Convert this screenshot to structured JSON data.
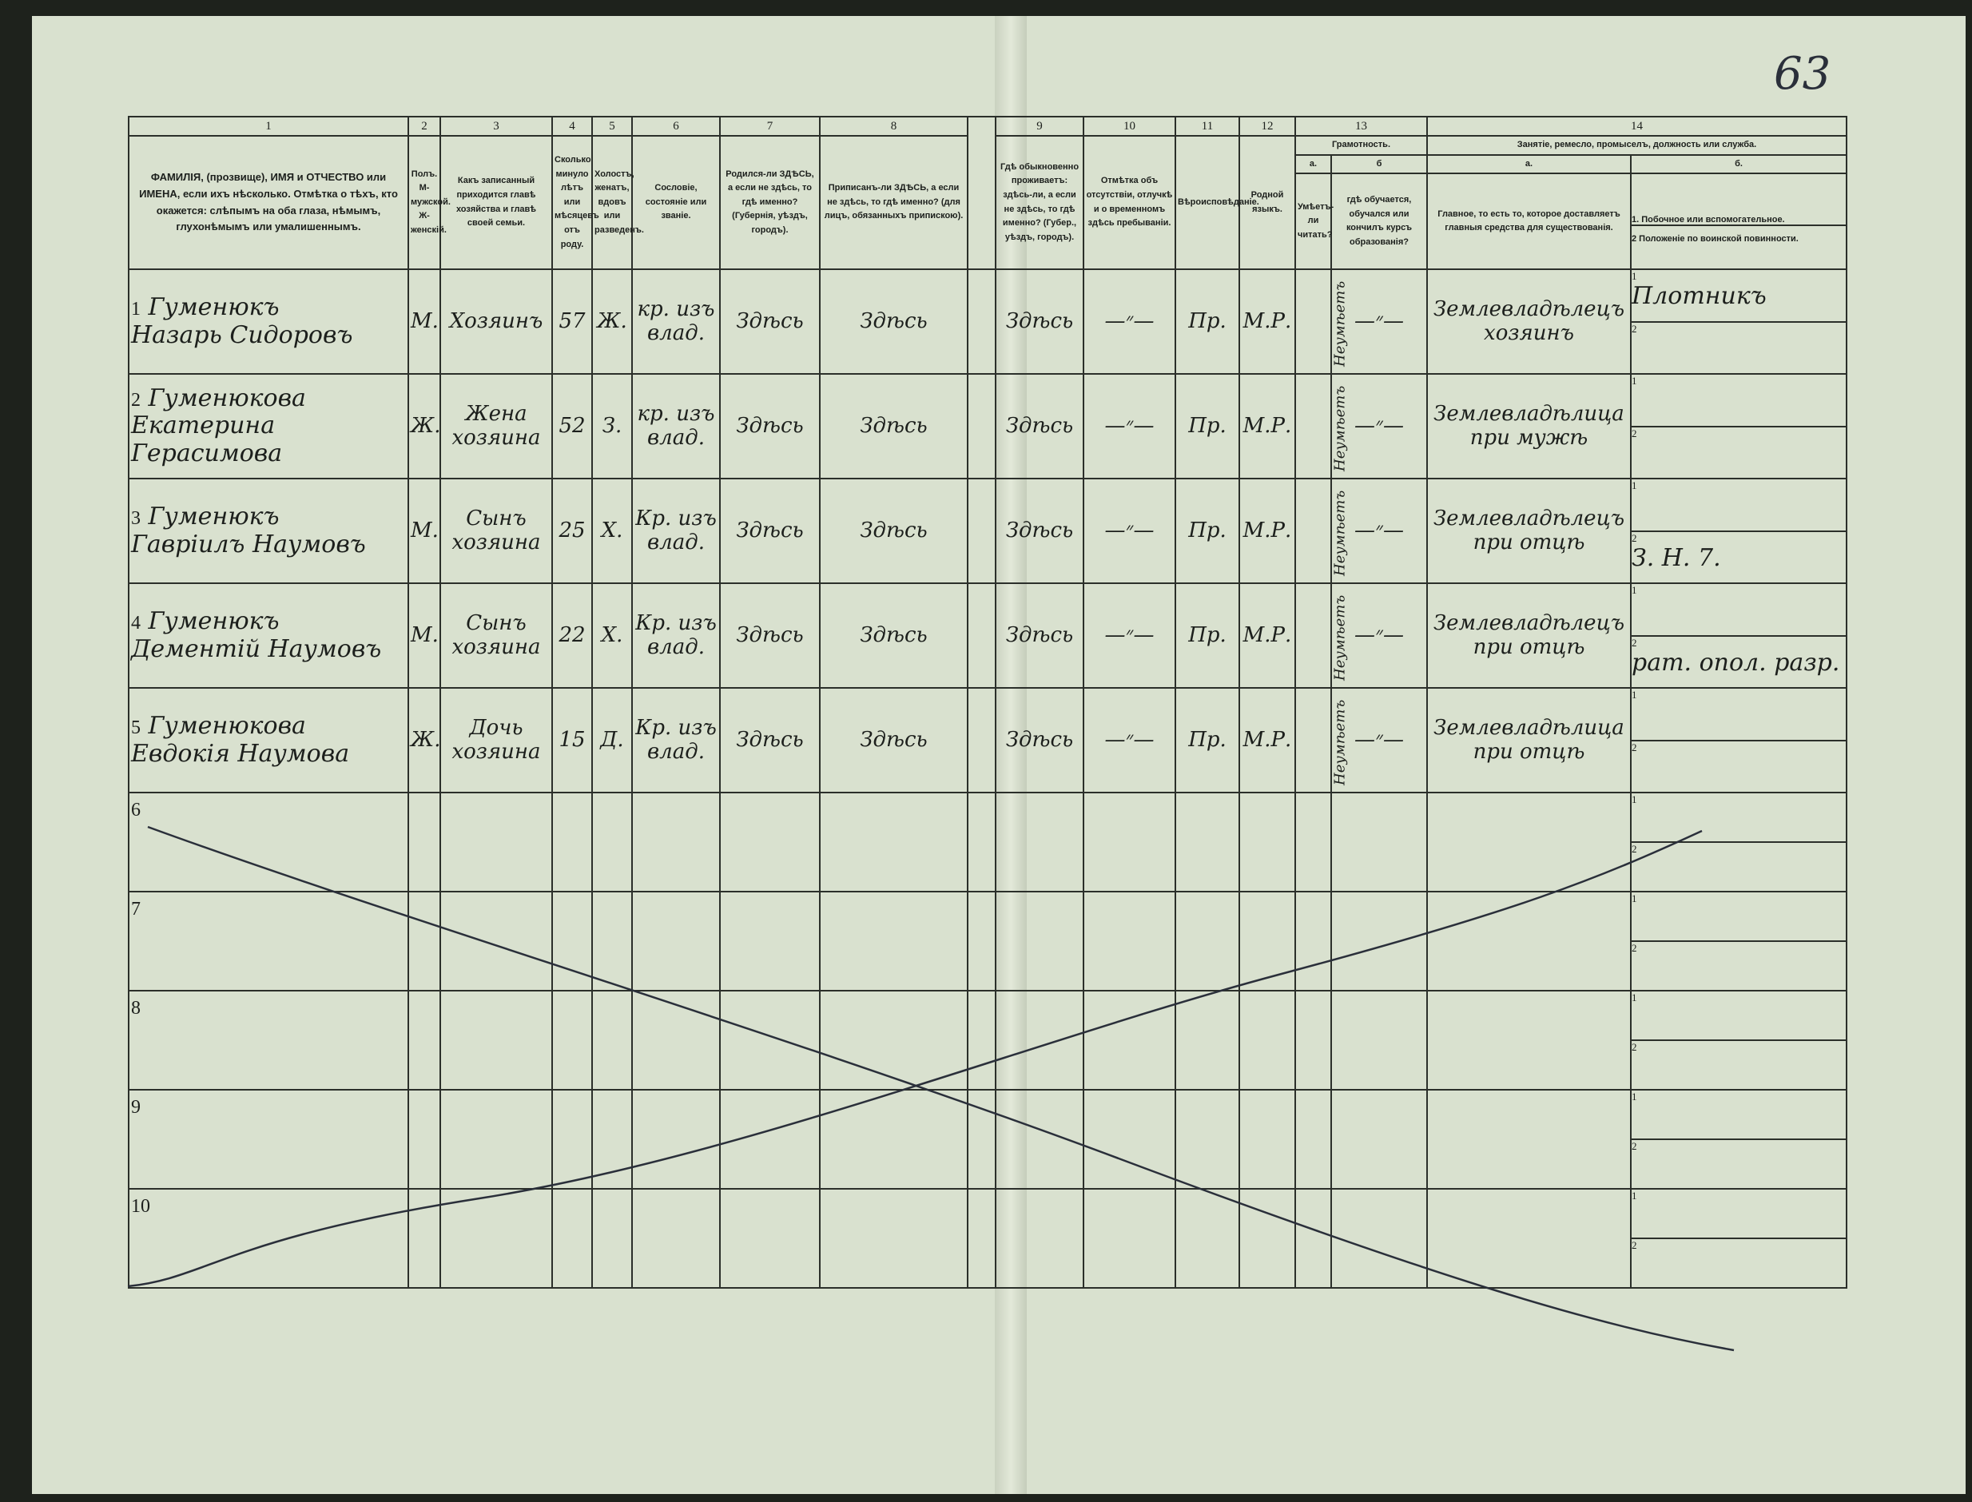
{
  "page_number": "63",
  "header": {
    "col_numbers": [
      "1",
      "2",
      "3",
      "4",
      "5",
      "6",
      "7",
      "8",
      "9",
      "10",
      "11",
      "12",
      "13",
      "14"
    ],
    "c1": "ФАМИЛІЯ, (прозвище), ИМЯ и ОТЧЕСТВО или ИМЕНА, если ихъ нѣсколько. Отмѣтка о тѣхъ, кто окажется: слѣпымъ на оба глаза, нѣмымъ, глухонѣмымъ или умалишеннымъ.",
    "c2": "Полъ. М-мужской. Ж-женскій.",
    "c3": "Какъ записанный приходится главѣ хозяйства и главѣ своей семьи.",
    "c4": "Сколько минуло лѣтъ или мѣсяцевъ отъ роду.",
    "c5": "Холостъ, женатъ, вдовъ или разведенъ.",
    "c6": "Сословіе, состояніе или званіе.",
    "c7": "Родился-ли ЗДѢСЬ, а если не здѣсь, то гдѣ именно? (Губернія, уѣздъ, городъ).",
    "c8": "Приписанъ-ли ЗДѢСЬ, а если не здѣсь, то гдѣ именно? (для лицъ, обязанныхъ припискою).",
    "c9": "Гдѣ обыкновенно проживаетъ: здѣсь-ли, а если не здѣсь, то гдѣ именно? (Губер., уѣздъ, городъ).",
    "c10": "Отмѣтка объ отсутствіи, отлучкѣ и о временномъ здѣсь пребываніи.",
    "c11": "Вѣроисповѣданіе.",
    "c12": "Родной языкъ.",
    "c13": "Грамотность.",
    "c13a_label": "а.",
    "c13a": "Умѣетъ-ли читать?",
    "c13b_label": "б",
    "c13b": "гдѣ обучается, обучался или кончилъ курсъ образованія?",
    "c14": "Занятіе, ремесло, промыселъ, должность или служба.",
    "c14a_label": "а.",
    "c14a": "Главное, то есть то, которое доставляетъ главныя средства для существованія.",
    "c14b_label": "б.",
    "c14b1": "1. Побочное или вспомогательное.",
    "c14b2": "2 Положеніе по воинской повинности."
  },
  "rows": [
    {
      "n": "1",
      "surname": "Гуменюкъ",
      "name": "Назарь Сидоровъ",
      "sex": "М.",
      "relation": "Хозяинъ",
      "age": "57",
      "marital": "Ж.",
      "estate": "кр. изъ влад.",
      "born": "Здѣсь",
      "registered": "Здѣсь",
      "resides": "Здѣсь",
      "absence": "—״—",
      "religion": "Пр.",
      "language": "М.Р.",
      "literate": "Неумѣетъ",
      "education": "—״—",
      "occupation": "Землевладѣлецъ хозяинъ",
      "secondary": "Плотникъ",
      "military": ""
    },
    {
      "n": "2",
      "surname": "Гуменюкова",
      "name": "Екатерина Герасимова",
      "sex": "Ж.",
      "relation": "Жена хозяина",
      "age": "52",
      "marital": "З.",
      "estate": "кр. изъ влад.",
      "born": "Здѣсь",
      "registered": "Здѣсь",
      "resides": "Здѣсь",
      "absence": "—״—",
      "religion": "Пр.",
      "language": "М.Р.",
      "literate": "Неумѣетъ",
      "education": "—״—",
      "occupation": "Землевладѣлица при мужѣ",
      "secondary": "",
      "military": ""
    },
    {
      "n": "3",
      "surname": "Гуменюкъ",
      "name": "Гавріилъ Наумовъ",
      "sex": "М.",
      "relation": "Сынъ хозяина",
      "age": "25",
      "marital": "Х.",
      "estate": "Кр. изъ влад.",
      "born": "Здѣсь",
      "registered": "Здѣсь",
      "resides": "Здѣсь",
      "absence": "—״—",
      "religion": "Пр.",
      "language": "М.Р.",
      "literate": "Неумѣетъ",
      "education": "—״—",
      "occupation": "Землевладѣлецъ при отцѣ",
      "secondary": "",
      "military": "З. Н. 7."
    },
    {
      "n": "4",
      "surname": "Гуменюкъ",
      "name": "Дементій Наумовъ",
      "sex": "М.",
      "relation": "Сынъ хозяина",
      "age": "22",
      "marital": "Х.",
      "estate": "Кр. изъ влад.",
      "born": "Здѣсь",
      "registered": "Здѣсь",
      "resides": "Здѣсь",
      "absence": "—״—",
      "religion": "Пр.",
      "language": "М.Р.",
      "literate": "Неумѣетъ",
      "education": "—״—",
      "occupation": "Землевладѣлецъ при отцѣ",
      "secondary": "",
      "military": "рат. опол. разр."
    },
    {
      "n": "5",
      "surname": "Гуменюкова",
      "name": "Евдокія Наумова",
      "sex": "Ж.",
      "relation": "Дочь хозяина",
      "age": "15",
      "marital": "Д.",
      "estate": "Кр. изъ влад.",
      "born": "Здѣсь",
      "registered": "Здѣсь",
      "resides": "Здѣсь",
      "absence": "—״—",
      "religion": "Пр.",
      "language": "М.Р.",
      "literate": "Неумѣетъ",
      "education": "—״—",
      "occupation": "Землевладѣлица при отцѣ",
      "secondary": "",
      "military": ""
    }
  ],
  "empty_rows": [
    "6",
    "7",
    "8",
    "9",
    "10"
  ],
  "sub_marks": {
    "one": "1",
    "two": "2"
  }
}
